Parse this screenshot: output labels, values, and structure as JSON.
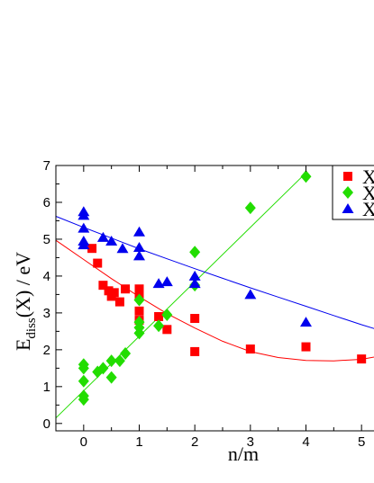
{
  "chart_data": {
    "type": "scatter",
    "xlabel": "n/m",
    "ylabel_main": "E",
    "ylabel_sub": "diss",
    "ylabel_rest": "(X) / eV",
    "xlim": [
      -0.5,
      5.5
    ],
    "ylim": [
      -0.2,
      7
    ],
    "xticks": [
      "0",
      "1",
      "2",
      "3",
      "4",
      "5"
    ],
    "yticks": [
      "0",
      "1",
      "2",
      "3",
      "4",
      "5",
      "6",
      "7"
    ],
    "series": [
      {
        "name": "X",
        "marker": "square",
        "color": "#ff0000",
        "points": [
          [
            0.15,
            4.75
          ],
          [
            0.25,
            4.35
          ],
          [
            0.35,
            3.75
          ],
          [
            0.45,
            3.6
          ],
          [
            0.5,
            3.45
          ],
          [
            0.55,
            3.55
          ],
          [
            0.65,
            3.3
          ],
          [
            0.75,
            3.65
          ],
          [
            1.0,
            3.65
          ],
          [
            1.0,
            3.45
          ],
          [
            1.0,
            3.05
          ],
          [
            1.0,
            2.8
          ],
          [
            1.35,
            2.9
          ],
          [
            1.5,
            2.55
          ],
          [
            2.0,
            2.85
          ],
          [
            2.0,
            1.95
          ],
          [
            3.0,
            2.02
          ],
          [
            4.0,
            2.08
          ],
          [
            5.0,
            1.75
          ]
        ],
        "fit": [
          [
            -0.5,
            4.97
          ],
          [
            0,
            4.45
          ],
          [
            0.5,
            3.93
          ],
          [
            1,
            3.44
          ],
          [
            1.5,
            2.98
          ],
          [
            2,
            2.59
          ],
          [
            2.5,
            2.23
          ],
          [
            3,
            1.95
          ],
          [
            3.5,
            1.79
          ],
          [
            4,
            1.71
          ],
          [
            4.5,
            1.7
          ],
          [
            5,
            1.74
          ],
          [
            5.5,
            1.88
          ]
        ]
      },
      {
        "name": "X",
        "marker": "diamond",
        "color": "#22dd00",
        "points": [
          [
            0,
            1.6
          ],
          [
            0,
            1.5
          ],
          [
            0,
            1.15
          ],
          [
            0,
            0.75
          ],
          [
            0,
            0.65
          ],
          [
            0.25,
            1.4
          ],
          [
            0.35,
            1.5
          ],
          [
            0.5,
            1.7
          ],
          [
            0.5,
            1.25
          ],
          [
            0.65,
            1.7
          ],
          [
            0.75,
            1.9
          ],
          [
            1.0,
            3.35
          ],
          [
            1.0,
            2.75
          ],
          [
            1.0,
            2.6
          ],
          [
            1.0,
            2.45
          ],
          [
            1.35,
            2.65
          ],
          [
            1.5,
            2.95
          ],
          [
            2.0,
            4.65
          ],
          [
            2.0,
            3.75
          ],
          [
            3.0,
            5.85
          ],
          [
            4.0,
            6.7
          ]
        ],
        "fit": [
          [
            -0.5,
            0.15
          ],
          [
            4.0,
            6.8
          ]
        ]
      },
      {
        "name": "X",
        "marker": "triangle",
        "color": "#0000ee",
        "points": [
          [
            0,
            5.75
          ],
          [
            0,
            5.65
          ],
          [
            0,
            5.3
          ],
          [
            0,
            4.95
          ],
          [
            0,
            4.85
          ],
          [
            0.35,
            5.05
          ],
          [
            0.5,
            4.95
          ],
          [
            0.7,
            4.75
          ],
          [
            1.0,
            5.2
          ],
          [
            1.0,
            4.78
          ],
          [
            1.0,
            4.55
          ],
          [
            1.35,
            3.8
          ],
          [
            1.5,
            3.85
          ],
          [
            2.0,
            4.0
          ],
          [
            2.0,
            3.8
          ],
          [
            3.0,
            3.5
          ],
          [
            4.0,
            2.75
          ]
        ],
        "fit": [
          [
            -0.5,
            5.62
          ],
          [
            0,
            5.32
          ],
          [
            0.5,
            5.03
          ],
          [
            1,
            4.74
          ],
          [
            1.5,
            4.47
          ],
          [
            2,
            4.2
          ],
          [
            2.5,
            3.94
          ],
          [
            3,
            3.68
          ],
          [
            3.5,
            3.43
          ],
          [
            4,
            3.18
          ],
          [
            4.5,
            2.93
          ],
          [
            5,
            2.68
          ],
          [
            5.5,
            2.45
          ]
        ]
      }
    ],
    "legend_placement": "top-right",
    "grid": false
  }
}
